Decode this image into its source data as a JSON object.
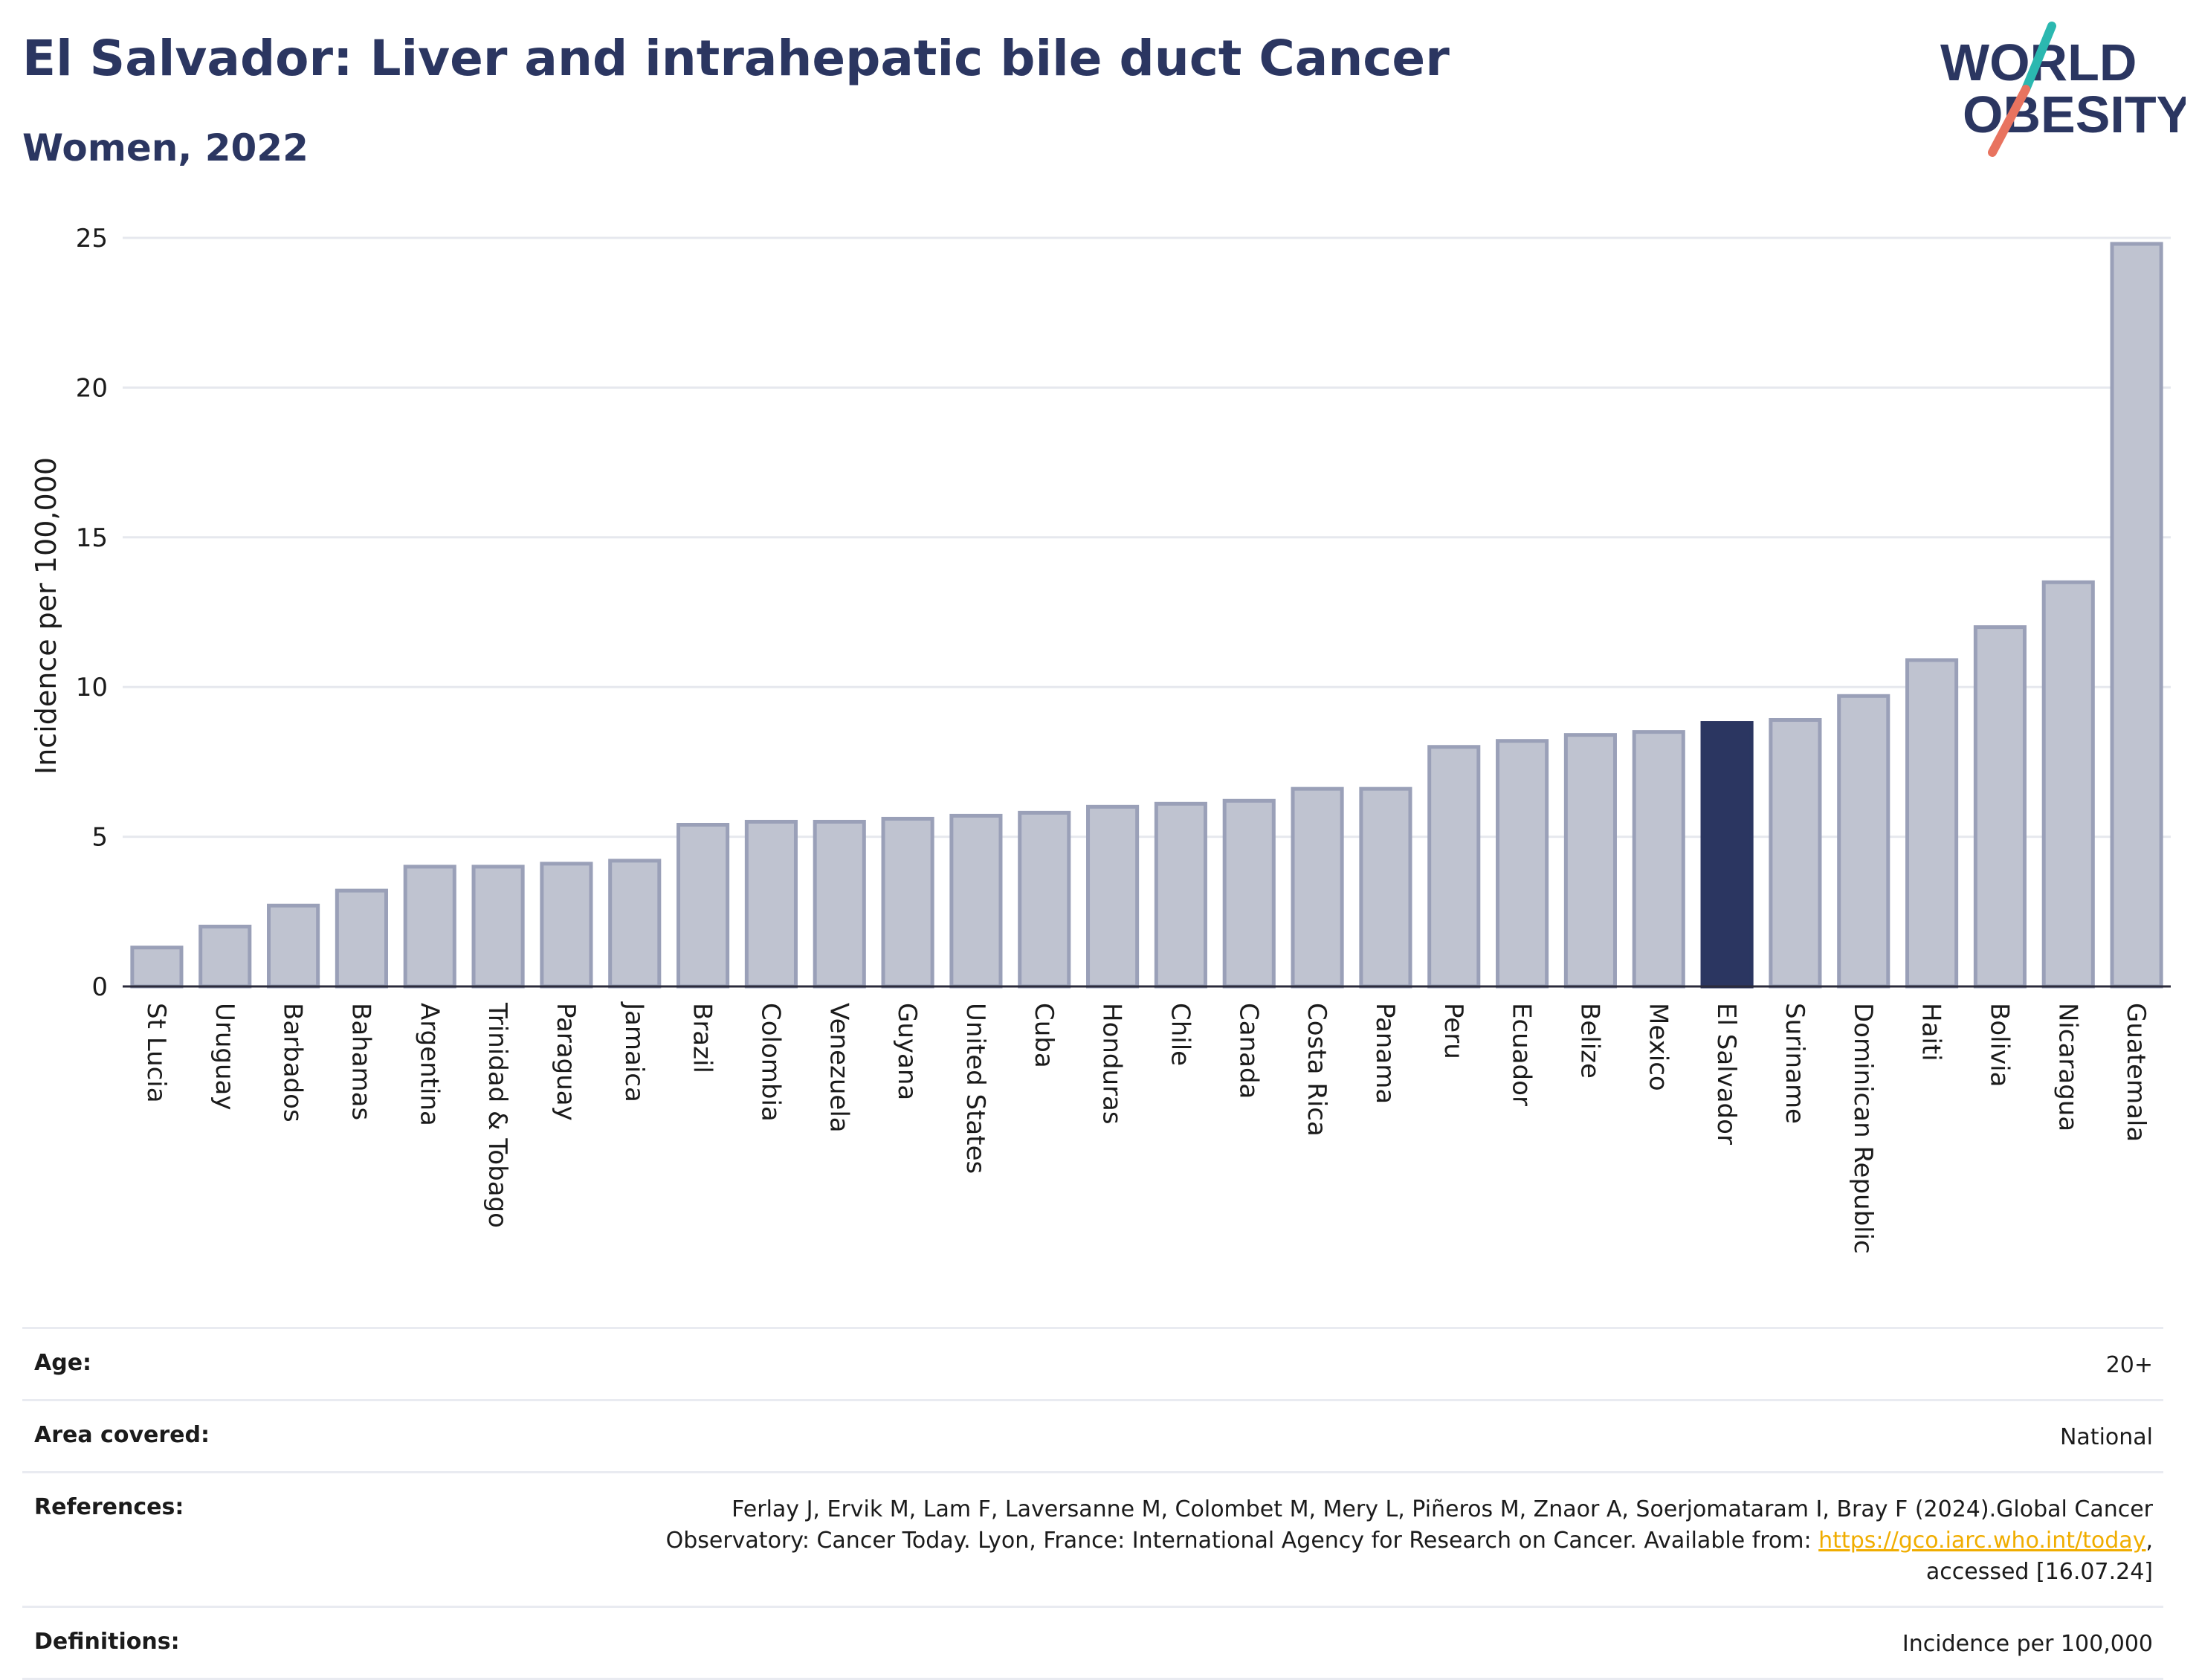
{
  "header": {
    "title": "El Salvador: Liver and intrahepatic bile duct Cancer",
    "subtitle": "Women, 2022"
  },
  "logo": {
    "line1": "WORLD",
    "line2": "OBESITY",
    "colors": {
      "text": "#2b3661",
      "slash_top": "#2bb8b0",
      "slash_bottom": "#e8735f"
    }
  },
  "chart_data": {
    "type": "bar",
    "ylabel": "Incidence per 100,000",
    "ylim": [
      0,
      25
    ],
    "yticks": [
      0,
      5,
      10,
      15,
      20,
      25
    ],
    "grid": true,
    "highlight": "El Salvador",
    "colors": {
      "bar": "#bfc3d0",
      "bar_edge": "#9aa0b8",
      "highlight": "#2b3661",
      "grid": "#e6e8ee"
    },
    "categories": [
      "St Lucia",
      "Uruguay",
      "Barbados",
      "Bahamas",
      "Argentina",
      "Trinidad & Tobago",
      "Paraguay",
      "Jamaica",
      "Brazil",
      "Colombia",
      "Venezuela",
      "Guyana",
      "United States",
      "Cuba",
      "Honduras",
      "Chile",
      "Canada",
      "Costa Rica",
      "Panama",
      "Peru",
      "Ecuador",
      "Belize",
      "Mexico",
      "El Salvador",
      "Suriname",
      "Dominican Republic",
      "Haiti",
      "Bolivia",
      "Nicaragua",
      "Guatemala"
    ],
    "values": [
      1.3,
      2.0,
      2.7,
      3.2,
      4.0,
      4.0,
      4.1,
      4.2,
      5.4,
      5.5,
      5.5,
      5.6,
      5.7,
      5.8,
      6.0,
      6.1,
      6.2,
      6.6,
      6.6,
      8.0,
      8.2,
      8.4,
      8.5,
      8.8,
      8.9,
      9.7,
      10.9,
      12.0,
      13.5,
      24.8
    ]
  },
  "info": {
    "age": {
      "label": "Age:",
      "value": "20+"
    },
    "area": {
      "label": "Area covered:",
      "value": "National"
    },
    "references": {
      "label": "References:",
      "line1": "Ferlay J, Ervik M, Lam F, Laversanne M, Colombet M, Mery L, Piñeros M, Znaor A, Soerjomataram I, Bray F (2024).Global Cancer",
      "line2_prefix": "Observatory: Cancer Today. Lyon, France: International Agency for Research on Cancer. Available from: ",
      "link": "https://gco.iarc.who.int/today",
      "line2_suffix": ",",
      "line3": "accessed [16.07.24]"
    },
    "definitions": {
      "label": "Definitions:",
      "value": "Incidence per 100,000"
    }
  }
}
